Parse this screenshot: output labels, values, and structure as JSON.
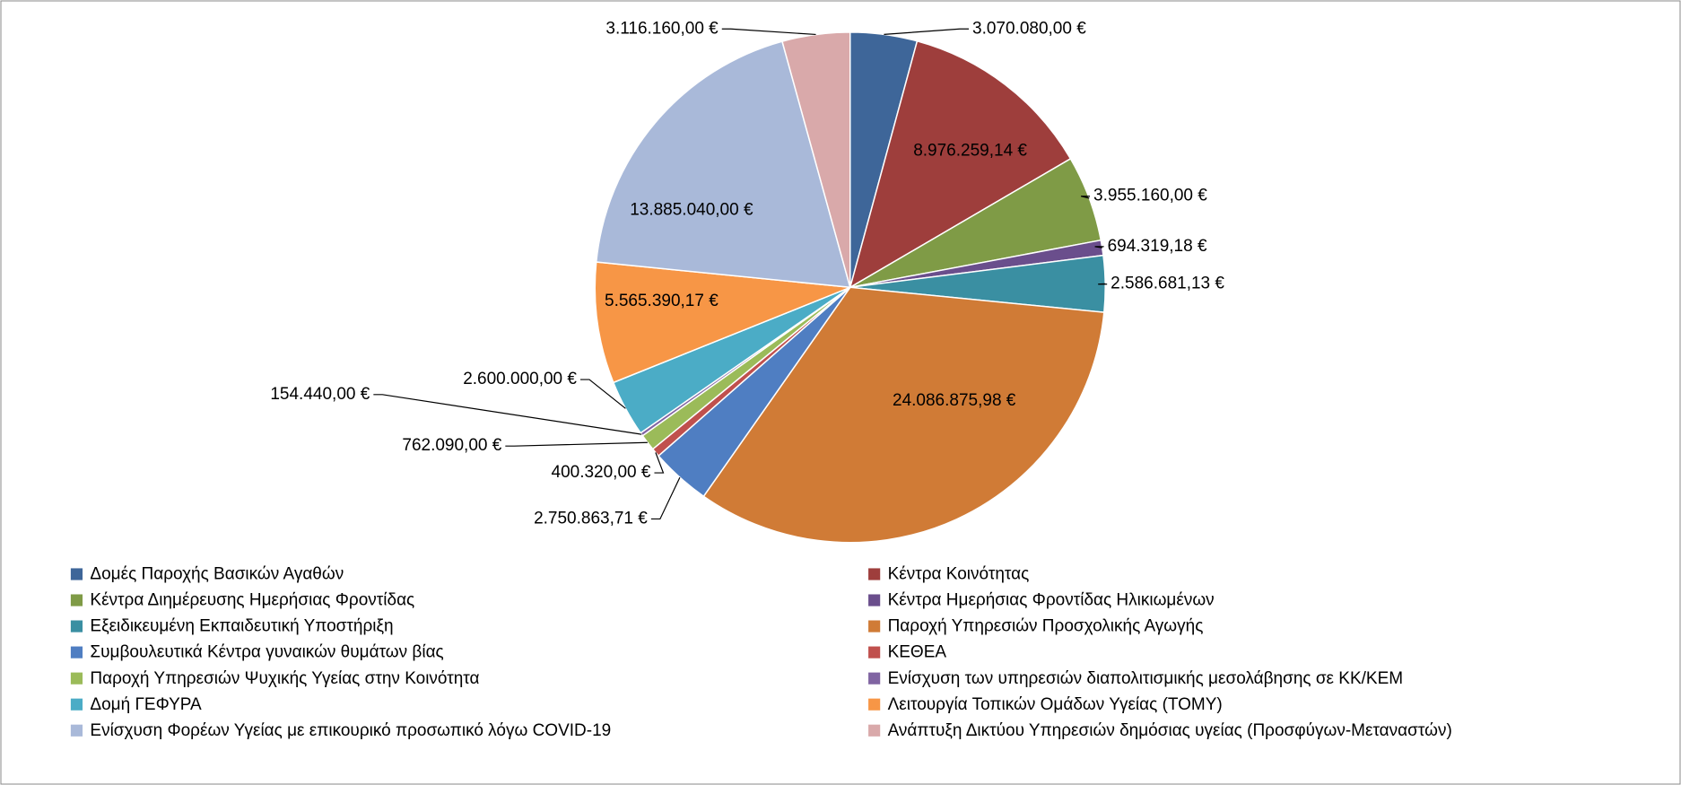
{
  "chart_data": {
    "type": "pie",
    "categories": [
      "Δομές Παροχής Βασικών Αγαθών",
      "Κέντρα Κοινότητας",
      "Κέντρα Διημέρευσης Ημερήσιας Φροντίδας",
      "Κέντρα Ημερήσιας Φροντίδας Ηλικιωμένων",
      "Εξειδικευμένη Εκπαιδευτική Υποστήριξη",
      "Παροχή Υπηρεσιών Προσχολικής Αγωγής",
      "Συμβουλευτικά Κέντρα γυναικών θυμάτων βίας",
      "ΚΕΘΕΑ",
      "Παροχή Υπηρεσιών Ψυχικής Υγείας στην Κοινότητα",
      "Ενίσχυση των υπηρεσιών διαπολιτισμικής μεσολάβησης σε ΚΚ/ΚΕΜ",
      "Δομή ΓΕΦΥΡΑ",
      "Λειτουργία Τοπικών Ομάδων Υγείας (ΤΟΜΥ)",
      "Ενίσχυση Φορέων Υγείας με επικουρικό προσωπικό λόγω COVID-19",
      "Ανάπτυξη Δικτύου Υπηρεσιών δημόσιας υγείας (Προσφύγων-Μεταναστών)"
    ],
    "values": [
      3070080,
      8976259.14,
      3955160,
      694319.18,
      2586681.13,
      24086875.98,
      2750863.71,
      400320,
      762090,
      154440,
      2600000,
      5565390.17,
      13885040,
      3116160
    ],
    "value_labels": [
      "3.070.080,00 €",
      "8.976.259,14 €",
      "3.955.160,00 €",
      "694.319,18 €",
      "2.586.681,13 €",
      "24.086.875,98 €",
      "2.750.863,71 €",
      "400.320,00 €",
      "762.090,00 €",
      "154.440,00 €",
      "2.600.000,00 €",
      "5.565.390,17 €",
      "13.885.040,00 €",
      "3.116.160,00 €"
    ],
    "colors": [
      "#3E6699",
      "#9E3E3C",
      "#7F9B46",
      "#6A4E8C",
      "#3A8FA2",
      "#D07B36",
      "#4F7EC2",
      "#C0504D",
      "#9BBB59",
      "#8064A2",
      "#4BACC6",
      "#F79646",
      "#A9B9D9",
      "#D9A9AA"
    ],
    "legend": "bottom"
  }
}
